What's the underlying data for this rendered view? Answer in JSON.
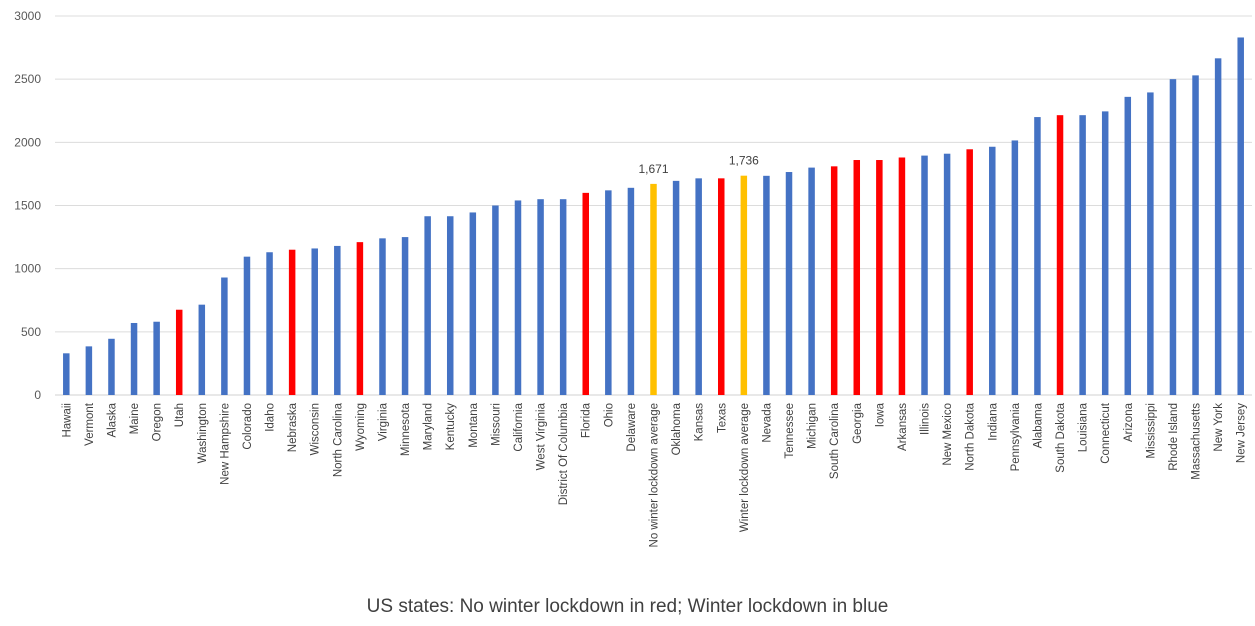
{
  "chart_data": {
    "type": "bar",
    "caption": "US states: No winter lockdown in red; Winter lockdown in blue",
    "ylim": [
      0,
      3000
    ],
    "yticks": [
      "0",
      "500",
      "1000",
      "1500",
      "2000",
      "2500",
      "3000"
    ],
    "grid": true,
    "colors": {
      "winter_lockdown": "#4472c4",
      "no_winter_lockdown": "#ff0000",
      "average": "#ffc000"
    },
    "categories": [
      "Hawaii",
      "Vermont",
      "Alaska",
      "Maine",
      "Oregon",
      "Utah",
      "Washington",
      "New Hampshire",
      "Colorado",
      "Idaho",
      "Nebraska",
      "Wisconsin",
      "North Carolina",
      "Wyoming",
      "Virginia",
      "Minnesota",
      "Maryland",
      "Kentucky",
      "Montana",
      "Missouri",
      "California",
      "West Virginia",
      "District Of Columbia",
      "Florida",
      "Ohio",
      "Delaware",
      "No winter lockdown average",
      "Oklahoma",
      "Kansas",
      "Texas",
      "Winter lockdown average",
      "Nevada",
      "Tennessee",
      "Michigan",
      "South Carolina",
      "Georgia",
      "Iowa",
      "Arkansas",
      "Illinois",
      "New Mexico",
      "North Dakota",
      "Indiana",
      "Pennsylvania",
      "Alabama",
      "South Dakota",
      "Louisiana",
      "Connecticut",
      "Arizona",
      "Mississippi",
      "Rhode Island",
      "Massachusetts",
      "New York",
      "New Jersey"
    ],
    "values": [
      330,
      385,
      445,
      570,
      580,
      675,
      715,
      930,
      1095,
      1130,
      1150,
      1160,
      1180,
      1210,
      1240,
      1250,
      1415,
      1415,
      1445,
      1500,
      1540,
      1550,
      1550,
      1600,
      1620,
      1640,
      1671,
      1695,
      1715,
      1715,
      1736,
      1735,
      1765,
      1800,
      1810,
      1860,
      1860,
      1880,
      1895,
      1910,
      1945,
      1965,
      2015,
      2200,
      2215,
      2215,
      2245,
      2360,
      2395,
      2500,
      2530,
      2665,
      2830
    ],
    "groups": [
      "winter_lockdown",
      "winter_lockdown",
      "winter_lockdown",
      "winter_lockdown",
      "winter_lockdown",
      "no_winter_lockdown",
      "winter_lockdown",
      "winter_lockdown",
      "winter_lockdown",
      "winter_lockdown",
      "no_winter_lockdown",
      "winter_lockdown",
      "winter_lockdown",
      "no_winter_lockdown",
      "winter_lockdown",
      "winter_lockdown",
      "winter_lockdown",
      "winter_lockdown",
      "winter_lockdown",
      "winter_lockdown",
      "winter_lockdown",
      "winter_lockdown",
      "winter_lockdown",
      "no_winter_lockdown",
      "winter_lockdown",
      "winter_lockdown",
      "average",
      "winter_lockdown",
      "winter_lockdown",
      "no_winter_lockdown",
      "average",
      "winter_lockdown",
      "winter_lockdown",
      "winter_lockdown",
      "no_winter_lockdown",
      "no_winter_lockdown",
      "no_winter_lockdown",
      "no_winter_lockdown",
      "winter_lockdown",
      "winter_lockdown",
      "no_winter_lockdown",
      "winter_lockdown",
      "winter_lockdown",
      "winter_lockdown",
      "no_winter_lockdown",
      "winter_lockdown",
      "winter_lockdown",
      "winter_lockdown",
      "winter_lockdown",
      "winter_lockdown",
      "winter_lockdown",
      "winter_lockdown",
      "winter_lockdown"
    ],
    "data_labels": [
      {
        "category": "No winter lockdown average",
        "text": "1,671"
      },
      {
        "category": "Winter lockdown average",
        "text": "1,736"
      }
    ]
  }
}
